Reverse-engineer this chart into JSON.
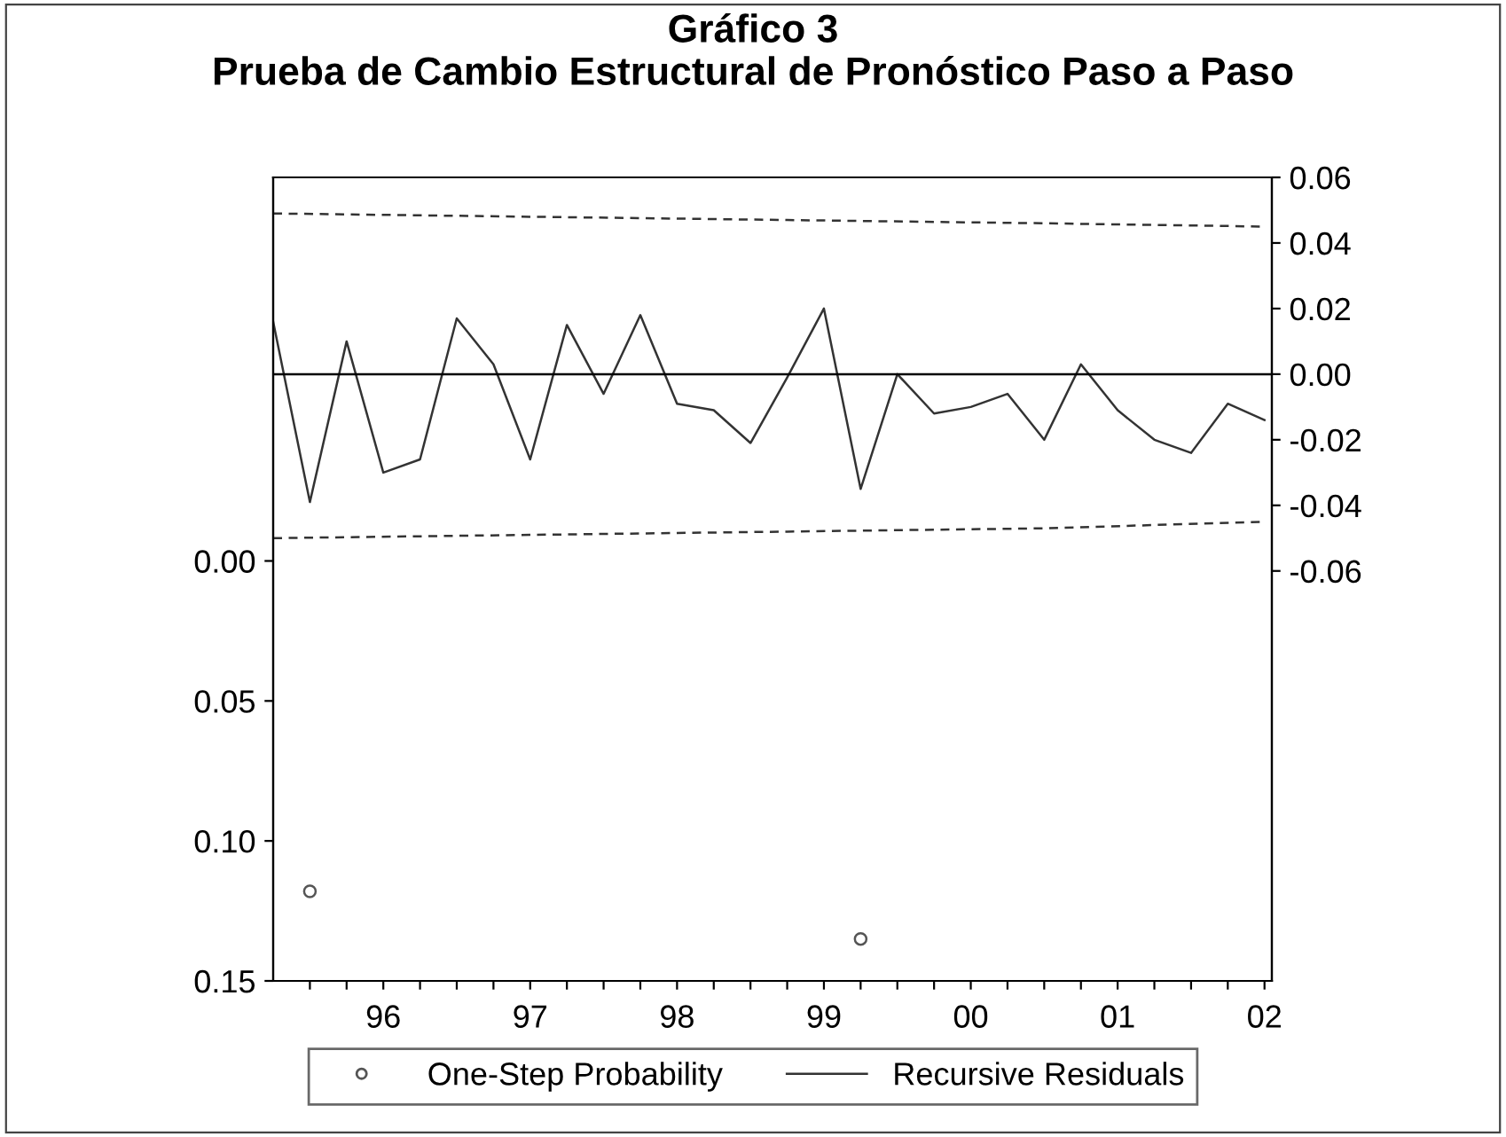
{
  "chart_data": {
    "type": "line",
    "title": "Gráfico 3",
    "subtitle": "Prueba de Cambio Estructural de Pronóstico Paso a Paso",
    "xlim": [
      1995.25,
      2002.05
    ],
    "xticks": [
      {
        "value": 1995.5,
        "label": null
      },
      {
        "value": 1995.75,
        "label": null
      },
      {
        "value": 1996,
        "label": "96"
      },
      {
        "value": 1996.25,
        "label": null
      },
      {
        "value": 1996.5,
        "label": null
      },
      {
        "value": 1996.75,
        "label": null
      },
      {
        "value": 1997,
        "label": "97"
      },
      {
        "value": 1997.25,
        "label": null
      },
      {
        "value": 1997.5,
        "label": null
      },
      {
        "value": 1997.75,
        "label": null
      },
      {
        "value": 1998,
        "label": "98"
      },
      {
        "value": 1998.25,
        "label": null
      },
      {
        "value": 1998.5,
        "label": null
      },
      {
        "value": 1998.75,
        "label": null
      },
      {
        "value": 1999,
        "label": "99"
      },
      {
        "value": 1999.25,
        "label": null
      },
      {
        "value": 1999.5,
        "label": null
      },
      {
        "value": 1999.75,
        "label": null
      },
      {
        "value": 2000,
        "label": "00"
      },
      {
        "value": 2000.25,
        "label": null
      },
      {
        "value": 2000.5,
        "label": null
      },
      {
        "value": 2000.75,
        "label": null
      },
      {
        "value": 2001,
        "label": "01"
      },
      {
        "value": 2001.25,
        "label": null
      },
      {
        "value": 2001.5,
        "label": null
      },
      {
        "value": 2001.75,
        "label": null
      },
      {
        "value": 2002,
        "label": "02"
      }
    ],
    "ylim": [
      0.15,
      -0.137
    ],
    "yticks": [
      {
        "value": 0,
        "label": "0.00"
      },
      {
        "value": 0.05,
        "label": "0.05"
      },
      {
        "value": 0.1,
        "label": "0.10"
      },
      {
        "value": 0.15,
        "label": "0.15"
      }
    ],
    "y2lim": [
      -0.185,
      0.06
    ],
    "y2ticks": [
      {
        "value": -0.06,
        "label": "-0.06"
      },
      {
        "value": -0.04,
        "label": "-0.04"
      },
      {
        "value": -0.02,
        "label": "-0.02"
      },
      {
        "value": 0,
        "label": "0.00"
      },
      {
        "value": 0.02,
        "label": "0.02"
      },
      {
        "value": 0.04,
        "label": "0.04"
      },
      {
        "value": 0.06,
        "label": "0.06"
      }
    ],
    "ref_lines": [
      {
        "axis": "y2",
        "value": 0,
        "color": "#000000",
        "line_style": "solid"
      }
    ],
    "legend": "bottom",
    "grid": false,
    "series": [
      {
        "name": "One-Step Probability",
        "type": "scatter",
        "marker": "circle",
        "color": "#555555",
        "x": [
          1995.5,
          1999.25
        ],
        "values": [
          0.118,
          0.135
        ]
      },
      {
        "name": "Recursive Residuals",
        "type": "line",
        "axis": "y2",
        "color": "#333333",
        "line_style": "solid",
        "x": [
          1995.25,
          1995.5,
          1995.75,
          1996,
          1996.25,
          1996.5,
          1996.75,
          1997,
          1997.25,
          1997.5,
          1997.75,
          1998,
          1998.25,
          1998.5,
          1998.75,
          1999,
          1999.25,
          1999.5,
          1999.75,
          2000,
          2000.25,
          2000.5,
          2000.75,
          2001,
          2001.25,
          2001.5,
          2001.75,
          2002
        ],
        "values": [
          0.016,
          -0.039,
          0.01,
          -0.03,
          -0.026,
          0.017,
          0.003,
          -0.026,
          0.015,
          -0.006,
          0.018,
          -0.009,
          -0.011,
          -0.021,
          -0.001,
          0.02,
          -0.035,
          0.0,
          -0.012,
          -0.01,
          -0.006,
          -0.02,
          0.003,
          -0.011,
          -0.02,
          -0.024,
          -0.009,
          -0.014
        ]
      },
      {
        "type": "line",
        "axis": "y2",
        "color": "#333333",
        "line_style": "dashed",
        "x": [
          1995.25,
          1997,
          1998.75,
          2000.5,
          2002
        ],
        "values": [
          0.049,
          0.048,
          0.047,
          0.046,
          0.045
        ]
      },
      {
        "type": "line",
        "axis": "y2",
        "color": "#333333",
        "line_style": "dashed",
        "x": [
          1995.25,
          1997,
          1998.75,
          2000.5,
          2002
        ],
        "values": [
          -0.05,
          -0.049,
          -0.048,
          -0.047,
          -0.045
        ]
      }
    ]
  }
}
